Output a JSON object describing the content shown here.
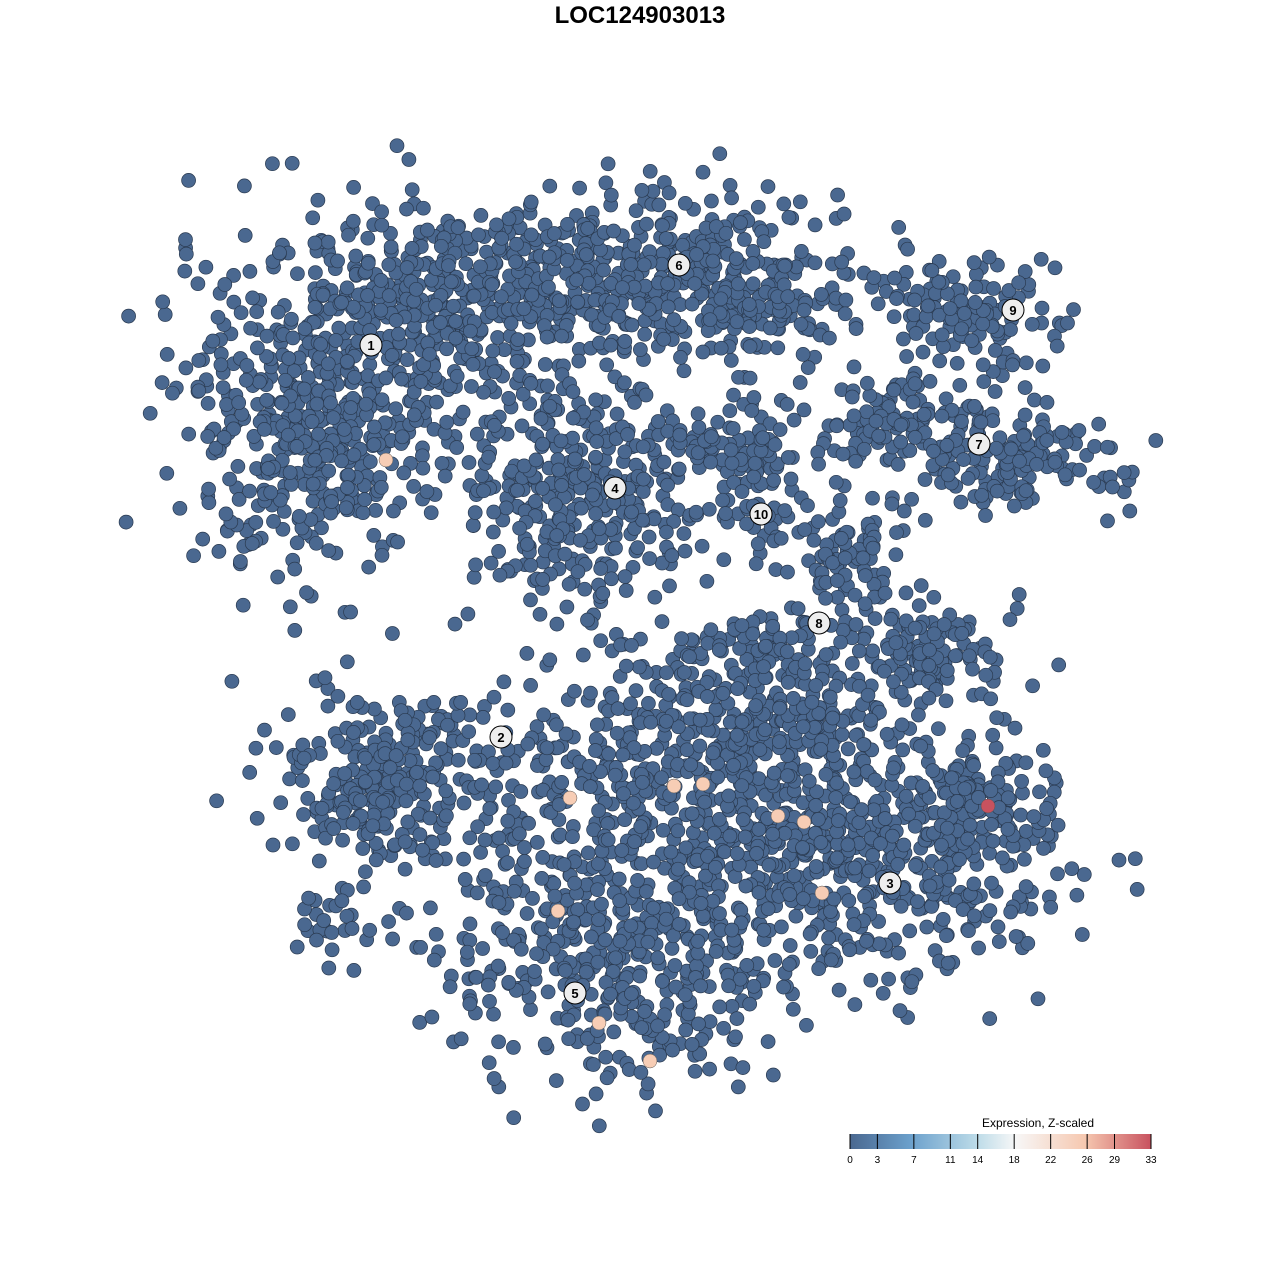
{
  "chart_data": {
    "type": "scatter",
    "title": "LOC124903013",
    "xlabel": "",
    "ylabel": "",
    "grid": false,
    "cluster_labels": [
      "1",
      "2",
      "3",
      "4",
      "5",
      "6",
      "7",
      "8",
      "9",
      "10"
    ],
    "highlighted_points": [
      {
        "cluster": "1",
        "value": 20
      },
      {
        "cluster": "2",
        "value": 20
      },
      {
        "cluster": "5",
        "value": 20
      },
      {
        "cluster": "5",
        "value": 20
      },
      {
        "cluster": "5",
        "value": 20
      },
      {
        "cluster": "3",
        "value": 20
      },
      {
        "cluster": "3",
        "value": 20
      },
      {
        "cluster": "3",
        "value": 20
      },
      {
        "cluster": "5",
        "value": 20
      },
      {
        "cluster": "5",
        "value": 20
      },
      {
        "cluster": "3",
        "value": 33
      }
    ],
    "baseline_value": 0,
    "legend": {
      "title": "Expression, Z-scaled",
      "placement": "bottom-right",
      "ticks": [
        "0",
        "3",
        "7",
        "11",
        "14",
        "18",
        "22",
        "26",
        "29",
        "33"
      ],
      "range": [
        0,
        33
      ],
      "colors": [
        "#4a6890",
        "#6ba0cc",
        "#d9e9f2",
        "#f7f7f7",
        "#f6c8b0",
        "#c8525f"
      ]
    },
    "point_color": "#4a6890"
  }
}
